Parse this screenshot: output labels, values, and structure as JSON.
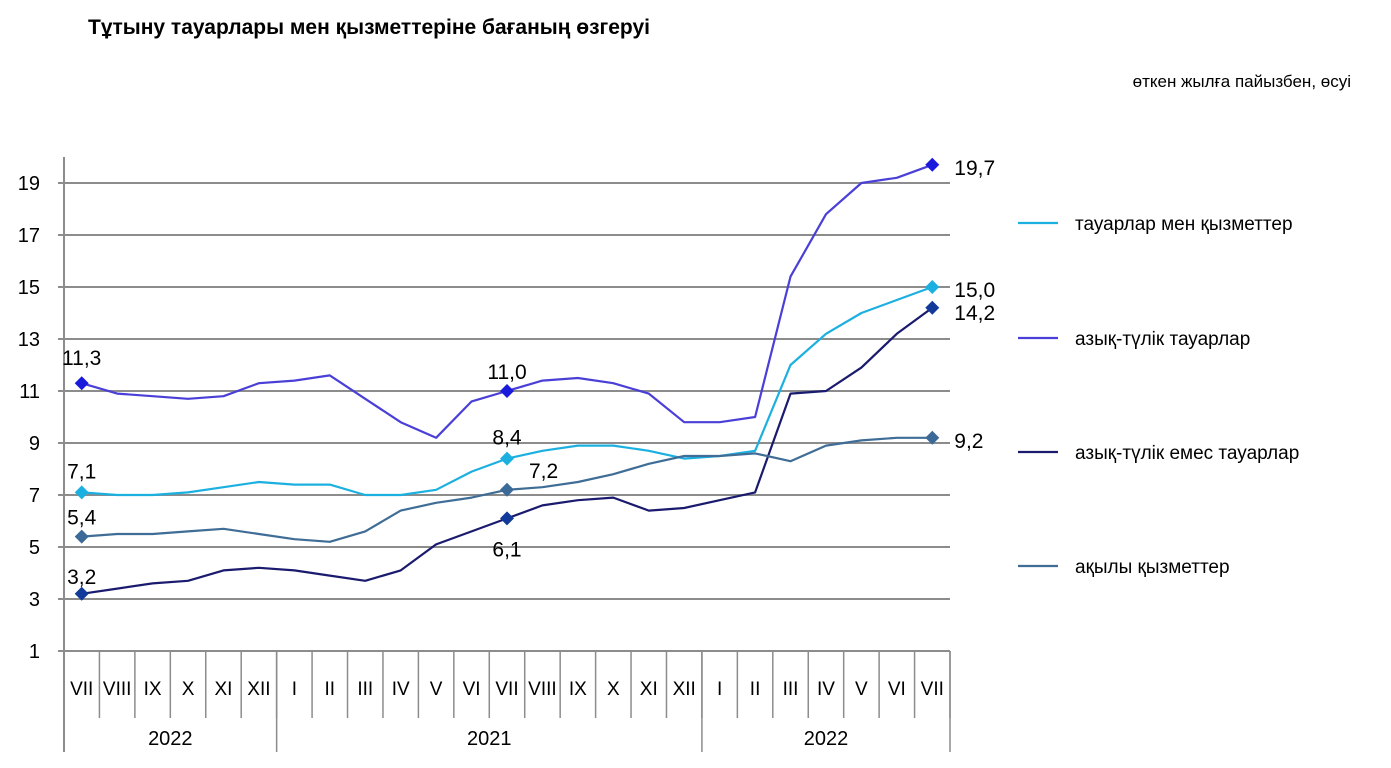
{
  "title": "Тұтыну тауарлары мен қызметтеріне бағаның өзгеруі",
  "subtitle": "өткен жылға пайызбен, өсуі",
  "chart_data": {
    "type": "line",
    "categories": [
      "VII",
      "VIII",
      "IX",
      "X",
      "XI",
      "XII",
      "I",
      "II",
      "III",
      "IV",
      "V",
      "VI",
      "VII",
      "VIII",
      "IX",
      "X",
      "XI",
      "XII",
      "I",
      "II",
      "III",
      "IV",
      "V",
      "VI",
      "VII"
    ],
    "year_groups": [
      {
        "label": "2022",
        "span": 6
      },
      {
        "label": "2021",
        "span": 12
      },
      {
        "label": "2022",
        "span": 7
      }
    ],
    "ylim": [
      1,
      20
    ],
    "yticks": [
      1,
      3,
      5,
      7,
      9,
      11,
      13,
      15,
      17,
      19
    ],
    "grid": true,
    "legend_position": "right",
    "series": [
      {
        "name": "тауарлар мен қызметтер",
        "color": "#1cb0e0",
        "values": [
          7.1,
          7.0,
          7.0,
          7.1,
          7.3,
          7.5,
          7.4,
          7.4,
          7.0,
          7.0,
          7.2,
          7.9,
          8.4,
          8.7,
          8.9,
          8.9,
          8.7,
          8.4,
          8.5,
          8.7,
          12.0,
          13.2,
          14.0,
          14.5,
          15.0
        ],
        "labels": [
          {
            "index": 0,
            "text": "7,1"
          },
          {
            "index": 12,
            "text": "8,4"
          },
          {
            "index": 24,
            "text": "15,0"
          }
        ]
      },
      {
        "name": "азық-түлік тауарлар",
        "color": "#4a3fd6",
        "marker_color": "#1a1adc",
        "values": [
          11.3,
          10.9,
          10.8,
          10.7,
          10.8,
          11.3,
          11.4,
          11.6,
          10.7,
          9.8,
          9.2,
          10.6,
          11.0,
          11.4,
          11.5,
          11.3,
          10.9,
          9.8,
          9.8,
          10.0,
          15.4,
          17.8,
          19.0,
          19.2,
          19.7
        ],
        "labels": [
          {
            "index": 0,
            "text": "11,3"
          },
          {
            "index": 12,
            "text": "11,0"
          },
          {
            "index": 24,
            "text": "19,7"
          }
        ]
      },
      {
        "name": "азық-түлік емес тауарлар",
        "color": "#1a1a6e",
        "marker_color": "#123a9a",
        "values": [
          3.2,
          3.4,
          3.6,
          3.7,
          4.1,
          4.2,
          4.1,
          3.9,
          3.7,
          4.1,
          5.1,
          5.6,
          6.1,
          6.6,
          6.8,
          6.9,
          6.4,
          6.5,
          6.8,
          7.1,
          10.9,
          11.0,
          11.9,
          13.2,
          14.2
        ],
        "labels": [
          {
            "index": 0,
            "text": "3,2"
          },
          {
            "index": 12,
            "text": "6,1"
          },
          {
            "index": 24,
            "text": "14,2"
          }
        ]
      },
      {
        "name": "ақылы қызметтер",
        "color": "#3f6d96",
        "marker_color": "#3c6a98",
        "values": [
          5.4,
          5.5,
          5.5,
          5.6,
          5.7,
          5.5,
          5.3,
          5.2,
          5.6,
          6.4,
          6.7,
          6.9,
          7.2,
          7.3,
          7.5,
          7.8,
          8.2,
          8.5,
          8.5,
          8.6,
          8.3,
          8.9,
          9.1,
          9.2,
          9.2
        ],
        "labels": [
          {
            "index": 0,
            "text": "5,4"
          },
          {
            "index": 12,
            "text": "7,2"
          },
          {
            "index": 24,
            "text": "9,2"
          }
        ]
      }
    ]
  }
}
